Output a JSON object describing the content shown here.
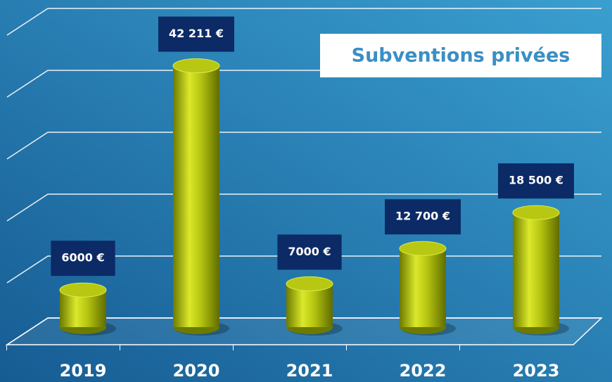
{
  "chart_data": {
    "type": "bar",
    "title": "Subventions privées",
    "categories": [
      "2019",
      "2020",
      "2021",
      "2022",
      "2023"
    ],
    "values": [
      6000,
      42211,
      7000,
      12700,
      18500
    ],
    "value_labels": [
      "6000 €",
      "42 211 €",
      "7000 €",
      "12 700 €",
      "18 500 €"
    ],
    "color": "#b8c812",
    "ylim": [
      0,
      50000
    ],
    "yticks": [
      0,
      10000,
      20000,
      30000,
      40000,
      50000
    ],
    "grid": true
  }
}
